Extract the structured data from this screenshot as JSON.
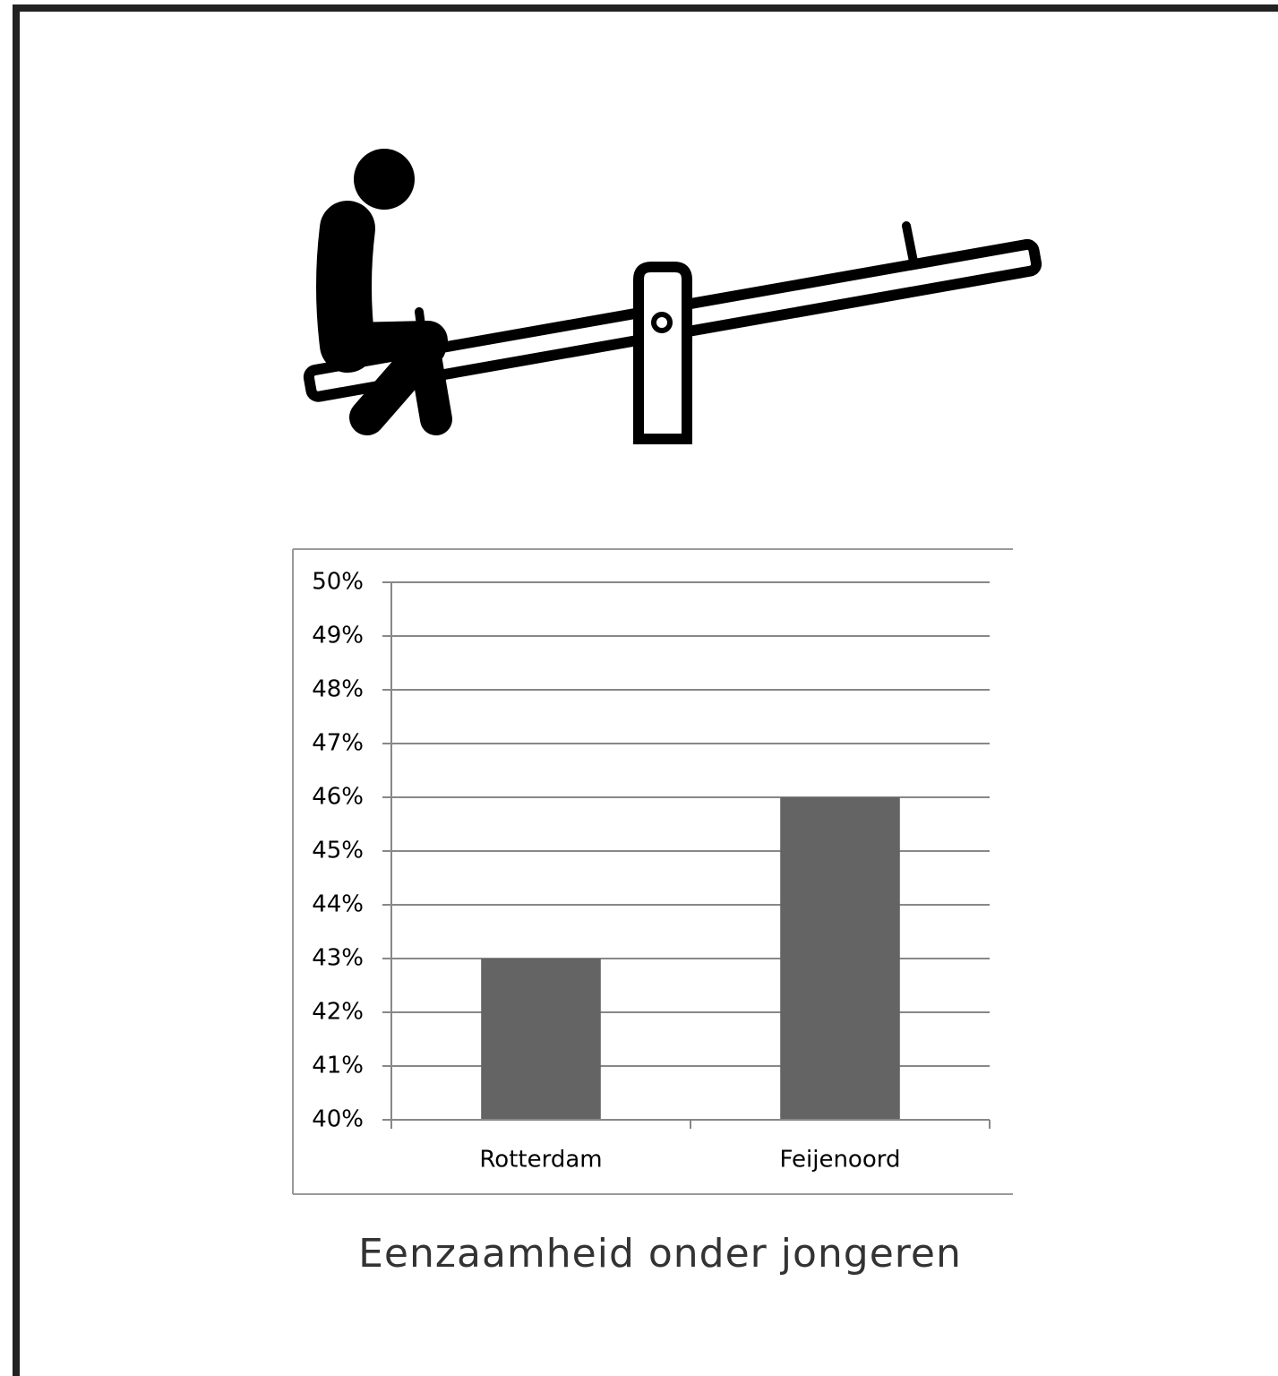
{
  "chart_data": {
    "type": "bar",
    "title": "Eenzaamheid onder jongeren",
    "categories": [
      "Rotterdam",
      "Feijenoord"
    ],
    "values": [
      43,
      46
    ],
    "color": "#646464",
    "ylim": [
      40,
      50
    ],
    "yticks": [
      {
        "value": 40,
        "label": "40%"
      },
      {
        "value": 41,
        "label": "41%"
      },
      {
        "value": 42,
        "label": "42%"
      },
      {
        "value": 43,
        "label": "43%"
      },
      {
        "value": 44,
        "label": "44%"
      },
      {
        "value": 45,
        "label": "45%"
      },
      {
        "value": 46,
        "label": "46%"
      },
      {
        "value": 47,
        "label": "47%"
      },
      {
        "value": 48,
        "label": "48%"
      },
      {
        "value": 49,
        "label": "49%"
      },
      {
        "value": 50,
        "label": "50%"
      }
    ],
    "grid": true
  }
}
